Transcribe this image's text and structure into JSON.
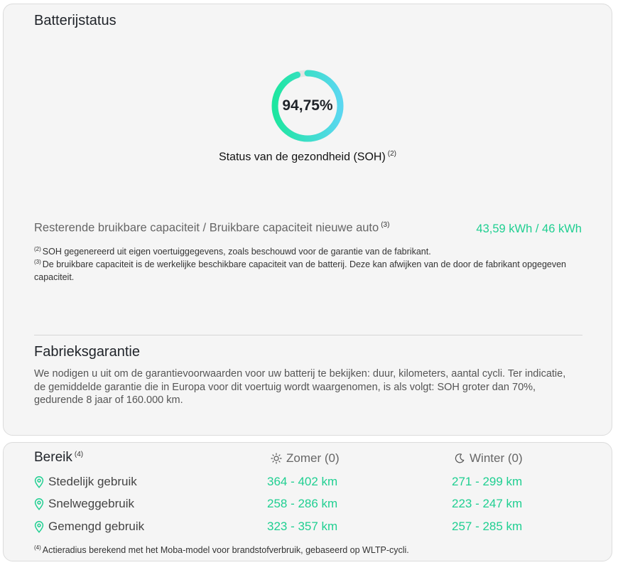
{
  "battery": {
    "title": "Batterijstatus",
    "soh_value": "94,75%",
    "soh_fraction": 0.9475,
    "soh_label": "Status van de gezondheid (SOH)",
    "soh_ref": "(2)",
    "capacity_label": "Resterende bruikbare capaciteit / Bruikbare capaciteit nieuwe auto",
    "capacity_ref": "(3)",
    "capacity_value": "43,59 kWh / 46 kWh",
    "footnotes": [
      {
        "ref": "(2)",
        "text": "SOH gegenereerd uit eigen voertuiggegevens, zoals beschouwd voor de garantie van de fabrikant."
      },
      {
        "ref": "(3)",
        "text": "De bruikbare capaciteit is de werkelijke beschikbare capaciteit van de batterij. Deze kan afwijken van de door de fabrikant opgegeven capaciteit."
      }
    ]
  },
  "warranty": {
    "title": "Fabrieksgarantie",
    "text": "We nodigen u uit om de garantievoorwaarden voor uw batterij te bekijken: duur, kilometers, aantal cycli. Ter indicatie, de gemiddelde garantie die in Europa voor dit voertuig wordt waargenomen, is als volgt: SOH groter dan 70%, gedurende 8 jaar of 160.000 km."
  },
  "range": {
    "title": "Bereik",
    "ref": "(4)",
    "summer_label": "Zomer (0)",
    "winter_label": "Winter (0)",
    "summer_icon": "sun-icon",
    "winter_icon": "moon-icon",
    "row_icon": "location-pin-icon",
    "rows": [
      {
        "label": "Stedelijk gebruik",
        "summer": "364 - 402 km",
        "winter": "271 - 299 km"
      },
      {
        "label": "Snelweggebruik",
        "summer": "258 - 286 km",
        "winter": "223 - 247 km"
      },
      {
        "label": "Gemengd gebruik",
        "summer": "323 - 357 km",
        "winter": "257 - 285 km"
      }
    ],
    "footnote": {
      "ref": "(4)",
      "text": "Actieradius berekend met het Moba-model voor brandstofverbruik, gebaseerd op WLTP-cycli."
    }
  },
  "colors": {
    "accent_green": "#1fcf91",
    "gauge_top": "#1ee6a0",
    "gauge_bottom": "#5ad7f0",
    "card_bg": "#f5f5f5"
  }
}
